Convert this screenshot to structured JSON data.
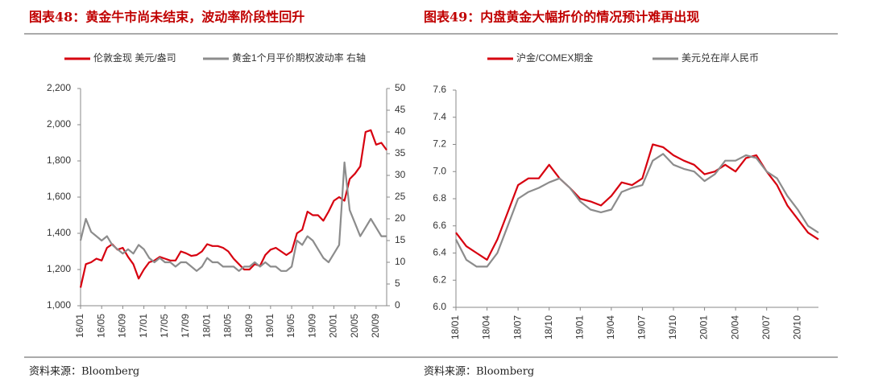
{
  "chart_data": [
    {
      "type": "line",
      "title": "图表48：黄金牛市尚未结束，波动率阶段性回升",
      "source": "资料来源：Bloomberg",
      "categories": [
        "16/01",
        null,
        null,
        null,
        "16/05",
        null,
        null,
        null,
        "16/09",
        null,
        null,
        null,
        "17/01",
        null,
        null,
        null,
        "17/05",
        null,
        null,
        null,
        "17/09",
        null,
        null,
        null,
        "18/01",
        null,
        null,
        null,
        "18/05",
        null,
        null,
        null,
        "18/09",
        null,
        null,
        null,
        "19/01",
        null,
        null,
        null,
        "19/05",
        null,
        null,
        null,
        "19/09",
        null,
        null,
        null,
        "20/01",
        null,
        null,
        null,
        "20/05",
        null,
        null,
        null,
        "20/09",
        null,
        null
      ],
      "series": [
        {
          "name": "伦敦金现 美元/盎司",
          "color": "#d7000f",
          "values": [
            1100,
            1230,
            1240,
            1260,
            1250,
            1320,
            1340,
            1310,
            1320,
            1270,
            1230,
            1150,
            1200,
            1240,
            1250,
            1270,
            1260,
            1250,
            1250,
            1300,
            1290,
            1275,
            1280,
            1300,
            1340,
            1330,
            1330,
            1320,
            1300,
            1260,
            1230,
            1200,
            1200,
            1230,
            1220,
            1280,
            1310,
            1320,
            1300,
            1280,
            1300,
            1400,
            1420,
            1520,
            1500,
            1500,
            1470,
            1520,
            1580,
            1600,
            1580,
            1700,
            1730,
            1770,
            1960,
            1970,
            1890,
            1900,
            1860
          ]
        },
        {
          "name": "黄金1个月平价期权波动率 右轴",
          "color": "#8c8c8c",
          "axis": "y2",
          "values": [
            15,
            20,
            17,
            16,
            15,
            16,
            14,
            13,
            12,
            13,
            12,
            14,
            13,
            11,
            10,
            11,
            10,
            10,
            9,
            10,
            10,
            9,
            8,
            9,
            11,
            10,
            10,
            9,
            9,
            9,
            8,
            9,
            9,
            10,
            9,
            10,
            9,
            9,
            8,
            8,
            9,
            15,
            14,
            16,
            15,
            13,
            11,
            10,
            12,
            14,
            33,
            22,
            19,
            16,
            18,
            20,
            18,
            16,
            16
          ]
        }
      ],
      "ylim": [
        1000,
        2200
      ],
      "yticks": [
        {
          "value": 1000,
          "label": "1,000"
        },
        {
          "value": 1200,
          "label": "1,200"
        },
        {
          "value": 1400,
          "label": "1,400"
        },
        {
          "value": 1600,
          "label": "1,600"
        },
        {
          "value": 1800,
          "label": "1,800"
        },
        {
          "value": 2000,
          "label": "2,000"
        },
        {
          "value": 2200,
          "label": "2,200"
        }
      ],
      "y2lim": [
        0,
        50
      ],
      "y2ticks": [
        0,
        5,
        10,
        15,
        20,
        25,
        30,
        35,
        40,
        45,
        50
      ]
    },
    {
      "type": "line",
      "title": "图表49：内盘黄金大幅折价的情况预计难再出现",
      "source": "资料来源：Bloomberg",
      "categories": [
        "18/01",
        null,
        null,
        "18/04",
        null,
        null,
        "18/07",
        null,
        null,
        "18/10",
        null,
        null,
        "19/01",
        null,
        null,
        "19/04",
        null,
        null,
        "19/07",
        null,
        null,
        "19/10",
        null,
        null,
        "20/01",
        null,
        null,
        "20/04",
        null,
        null,
        "20/07",
        null,
        null,
        "20/10",
        null,
        null
      ],
      "series": [
        {
          "name": "沪金/COMEX期金",
          "color": "#d7000f",
          "values": [
            6.55,
            6.45,
            6.4,
            6.35,
            6.5,
            6.7,
            6.9,
            6.95,
            6.95,
            7.05,
            6.95,
            6.88,
            6.8,
            6.78,
            6.75,
            6.82,
            6.92,
            6.9,
            6.95,
            7.2,
            7.18,
            7.12,
            7.08,
            7.05,
            6.98,
            7.0,
            7.05,
            7.0,
            7.1,
            7.12,
            7.0,
            6.9,
            6.75,
            6.65,
            6.55,
            6.5
          ]
        },
        {
          "name": "美元兑在岸人民币",
          "color": "#8c8c8c",
          "values": [
            6.5,
            6.35,
            6.3,
            6.3,
            6.4,
            6.6,
            6.8,
            6.85,
            6.88,
            6.92,
            6.95,
            6.88,
            6.78,
            6.72,
            6.7,
            6.72,
            6.85,
            6.88,
            6.9,
            7.08,
            7.13,
            7.05,
            7.02,
            7.0,
            6.93,
            6.98,
            7.08,
            7.08,
            7.12,
            7.1,
            7.0,
            6.95,
            6.82,
            6.72,
            6.6,
            6.55
          ]
        }
      ],
      "ylim": [
        6.0,
        7.6
      ],
      "yticks": [
        {
          "value": 6.0,
          "label": "6.0"
        },
        6.2,
        6.4,
        6.6,
        6.8,
        {
          "value": 7.0,
          "label": "7.0"
        },
        7.2,
        7.4,
        7.6
      ]
    }
  ]
}
